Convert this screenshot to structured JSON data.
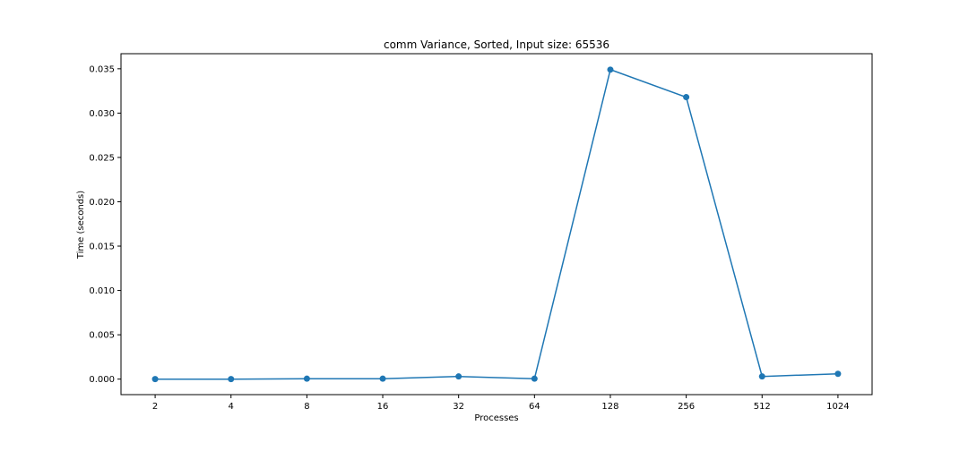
{
  "chart_data": {
    "type": "line",
    "title": "comm Variance, Sorted, Input size: 65536",
    "xlabel": "Processes",
    "ylabel": "Time (seconds)",
    "categories": [
      "2",
      "4",
      "8",
      "16",
      "32",
      "64",
      "128",
      "256",
      "512",
      "1024"
    ],
    "series": [
      {
        "values": [
          0.0,
          0.0,
          5e-05,
          5e-05,
          0.0003,
          5e-05,
          0.0349,
          0.0318,
          0.0003,
          0.0006
        ],
        "color": "#1f77b4",
        "marker": "circle"
      }
    ],
    "yticks": [
      "0.000",
      "0.005",
      "0.010",
      "0.015",
      "0.020",
      "0.025",
      "0.030",
      "0.035"
    ],
    "ylim": [
      -0.00175,
      0.0367
    ],
    "grid": false,
    "legend": "none"
  }
}
